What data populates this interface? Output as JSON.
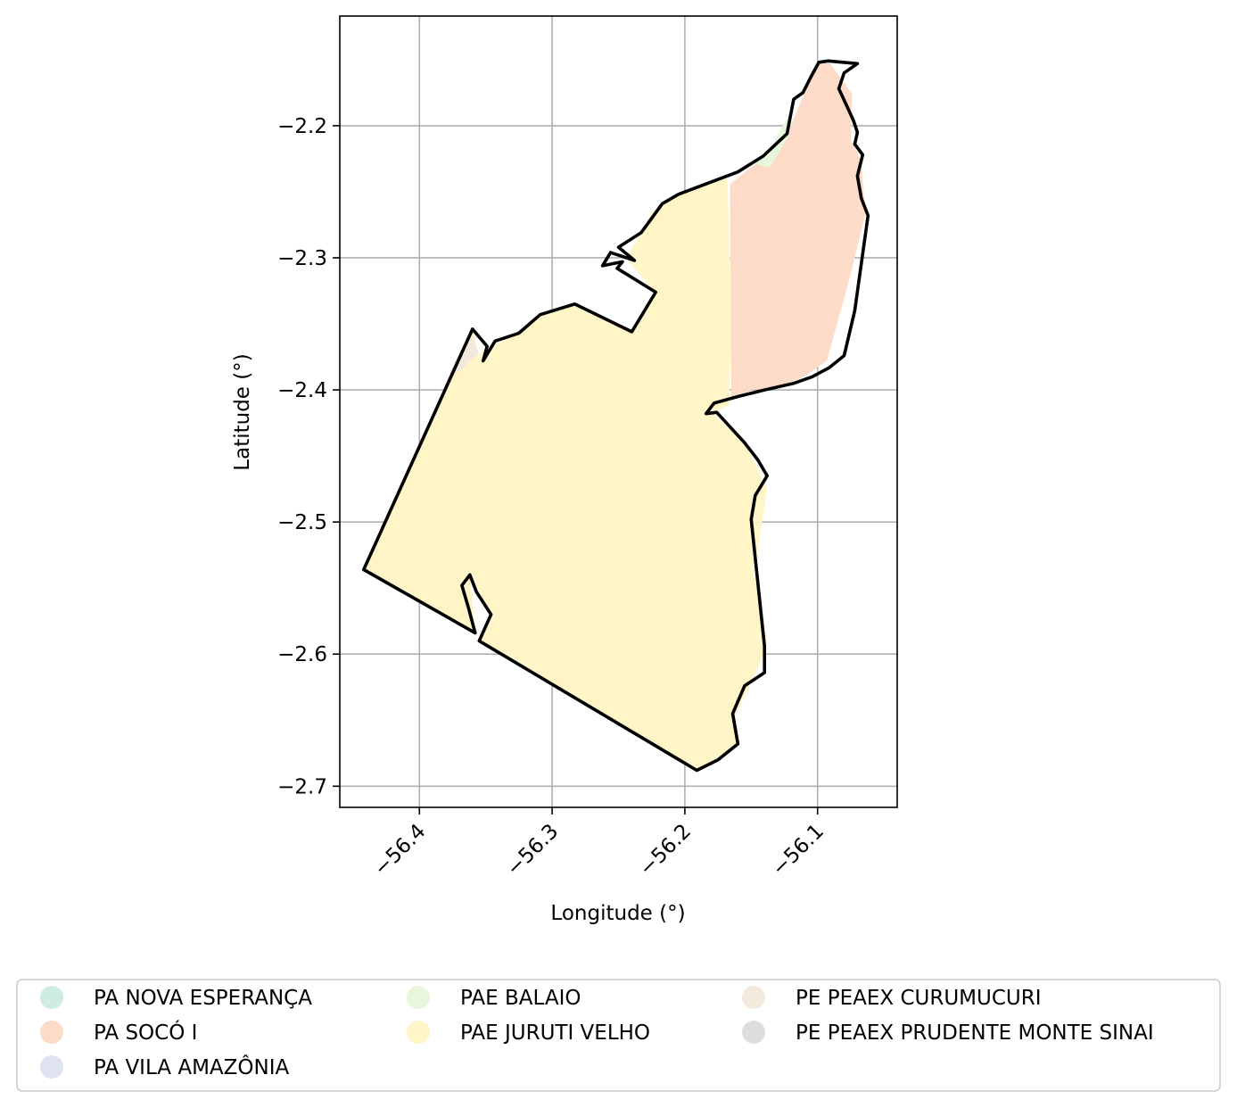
{
  "chart_data": {
    "type": "map",
    "xlabel": "Longitude (°)",
    "ylabel": "Latitude (°)",
    "xlim": [
      -56.46,
      -56.04
    ],
    "ylim": [
      -2.716,
      -2.117
    ],
    "xticks": [
      -56.4,
      -56.3,
      -56.2,
      -56.1
    ],
    "xtick_labels": [
      "−56.4",
      "−56.3",
      "−56.2",
      "−56.1"
    ],
    "yticks": [
      -2.2,
      -2.3,
      -2.4,
      -2.5,
      -2.6,
      -2.7
    ],
    "ytick_labels": [
      "−2.2",
      "−2.3",
      "−2.4",
      "−2.5",
      "−2.6",
      "−2.7"
    ],
    "grid": true,
    "legend_position": "bottom-center",
    "legend_columns": 3,
    "boundary_color": "#000000",
    "legend": [
      {
        "label": "PA NOVA ESPERANÇA",
        "color": "#cfece0"
      },
      {
        "label": "PA SOCÓ I",
        "color": "#fcdcc8"
      },
      {
        "label": "PA VILA AMAZÔNIA",
        "color": "#dfe2f0"
      },
      {
        "label": "PAE BALAIO",
        "color": "#e8f6db"
      },
      {
        "label": "PAE JURUTI VELHO",
        "color": "#fff5c7"
      },
      {
        "label": "PE PEAEX CURUMUCURI",
        "color": "#f3e9dc"
      },
      {
        "label": "PE PEAEX PRUDENTE MONTE SINAI",
        "color": "#dddddd"
      }
    ],
    "regions": [
      {
        "name": "PAE JURUTI VELHO",
        "color": "#fff5c7",
        "coords": [
          [
            -56.168,
            -2.24
          ],
          [
            -56.178,
            -2.243
          ],
          [
            -56.215,
            -2.257
          ],
          [
            -56.225,
            -2.265
          ],
          [
            -56.235,
            -2.285
          ],
          [
            -56.245,
            -2.3
          ],
          [
            -56.222,
            -2.326
          ],
          [
            -56.24,
            -2.356
          ],
          [
            -56.283,
            -2.335
          ],
          [
            -56.31,
            -2.345
          ],
          [
            -56.335,
            -2.362
          ],
          [
            -56.355,
            -2.372
          ],
          [
            -56.354,
            -2.38
          ],
          [
            -56.36,
            -2.354
          ],
          [
            -56.442,
            -2.536
          ],
          [
            -56.358,
            -2.584
          ],
          [
            -56.362,
            -2.54
          ],
          [
            -56.346,
            -2.57
          ],
          [
            -56.355,
            -2.59
          ],
          [
            -56.191,
            -2.688
          ],
          [
            -56.175,
            -2.678
          ],
          [
            -56.16,
            -2.669
          ],
          [
            -56.162,
            -2.647
          ],
          [
            -56.145,
            -2.61
          ],
          [
            -56.138,
            -2.592
          ],
          [
            -56.142,
            -2.565
          ],
          [
            -56.148,
            -2.54
          ],
          [
            -56.138,
            -2.475
          ],
          [
            -56.155,
            -2.44
          ],
          [
            -56.18,
            -2.417
          ],
          [
            -56.167,
            -2.412
          ],
          [
            -56.165,
            -2.36
          ],
          [
            -56.166,
            -2.3
          ]
        ]
      },
      {
        "name": "PA SOCÓ I",
        "color": "#fcdcc8",
        "coords": [
          [
            -56.166,
            -2.244
          ],
          [
            -56.143,
            -2.226
          ],
          [
            -56.126,
            -2.214
          ],
          [
            -56.112,
            -2.18
          ],
          [
            -56.098,
            -2.152
          ],
          [
            -56.092,
            -2.151
          ],
          [
            -56.074,
            -2.176
          ],
          [
            -56.075,
            -2.21
          ],
          [
            -56.067,
            -2.227
          ],
          [
            -56.064,
            -2.267
          ],
          [
            -56.077,
            -2.32
          ],
          [
            -56.093,
            -2.378
          ],
          [
            -56.11,
            -2.39
          ],
          [
            -56.13,
            -2.398
          ],
          [
            -56.15,
            -2.4
          ],
          [
            -56.165,
            -2.408
          ]
        ]
      },
      {
        "name": "PAE BALAIO",
        "color": "#e8f6db",
        "coords": [
          [
            -56.15,
            -2.228
          ],
          [
            -56.137,
            -2.222
          ],
          [
            -56.128,
            -2.203
          ],
          [
            -56.118,
            -2.186
          ],
          [
            -56.122,
            -2.208
          ],
          [
            -56.136,
            -2.232
          ]
        ]
      },
      {
        "name": "PE PEAEX CURUMUCURI",
        "color": "#f3e9dc",
        "coords": [
          [
            -56.355,
            -2.372
          ],
          [
            -56.362,
            -2.357
          ],
          [
            -56.374,
            -2.38
          ],
          [
            -56.38,
            -2.395
          ]
        ]
      }
    ],
    "outline": [
      [
        -56.092,
        -2.151
      ],
      [
        -56.07,
        -2.153
      ],
      [
        -56.08,
        -2.16
      ],
      [
        -56.084,
        -2.172
      ],
      [
        -56.078,
        -2.185
      ],
      [
        -56.073,
        -2.196
      ],
      [
        -56.07,
        -2.205
      ],
      [
        -56.072,
        -2.214
      ],
      [
        -56.066,
        -2.222
      ],
      [
        -56.07,
        -2.238
      ],
      [
        -56.067,
        -2.255
      ],
      [
        -56.062,
        -2.268
      ],
      [
        -56.072,
        -2.34
      ],
      [
        -56.08,
        -2.374
      ],
      [
        -56.091,
        -2.383
      ],
      [
        -56.104,
        -2.39
      ],
      [
        -56.118,
        -2.395
      ],
      [
        -56.14,
        -2.4
      ],
      [
        -56.16,
        -2.405
      ],
      [
        -56.178,
        -2.41
      ],
      [
        -56.184,
        -2.418
      ],
      [
        -56.176,
        -2.417
      ],
      [
        -56.155,
        -2.44
      ],
      [
        -56.145,
        -2.453
      ],
      [
        -56.138,
        -2.465
      ],
      [
        -56.147,
        -2.48
      ],
      [
        -56.15,
        -2.498
      ],
      [
        -56.14,
        -2.594
      ],
      [
        -56.14,
        -2.614
      ],
      [
        -56.155,
        -2.624
      ],
      [
        -56.164,
        -2.645
      ],
      [
        -56.16,
        -2.668
      ],
      [
        -56.175,
        -2.68
      ],
      [
        -56.191,
        -2.688
      ],
      [
        -56.355,
        -2.59
      ],
      [
        -56.346,
        -2.57
      ],
      [
        -56.357,
        -2.553
      ],
      [
        -56.362,
        -2.54
      ],
      [
        -56.368,
        -2.548
      ],
      [
        -56.363,
        -2.565
      ],
      [
        -56.358,
        -2.584
      ],
      [
        -56.442,
        -2.536
      ],
      [
        -56.36,
        -2.354
      ],
      [
        -56.349,
        -2.367
      ],
      [
        -56.352,
        -2.378
      ],
      [
        -56.343,
        -2.363
      ],
      [
        -56.325,
        -2.357
      ],
      [
        -56.309,
        -2.343
      ],
      [
        -56.283,
        -2.335
      ],
      [
        -56.24,
        -2.356
      ],
      [
        -56.222,
        -2.326
      ],
      [
        -56.251,
        -2.308
      ],
      [
        -56.247,
        -2.303
      ],
      [
        -56.262,
        -2.306
      ],
      [
        -56.256,
        -2.296
      ],
      [
        -56.238,
        -2.302
      ],
      [
        -56.25,
        -2.292
      ],
      [
        -56.233,
        -2.281
      ],
      [
        -56.222,
        -2.266
      ],
      [
        -56.217,
        -2.259
      ],
      [
        -56.205,
        -2.252
      ],
      [
        -56.168,
        -2.238
      ],
      [
        -56.16,
        -2.235
      ],
      [
        -56.141,
        -2.223
      ],
      [
        -56.123,
        -2.206
      ],
      [
        -56.118,
        -2.18
      ],
      [
        -56.111,
        -2.175
      ],
      [
        -56.105,
        -2.163
      ],
      [
        -56.099,
        -2.152
      ]
    ]
  }
}
